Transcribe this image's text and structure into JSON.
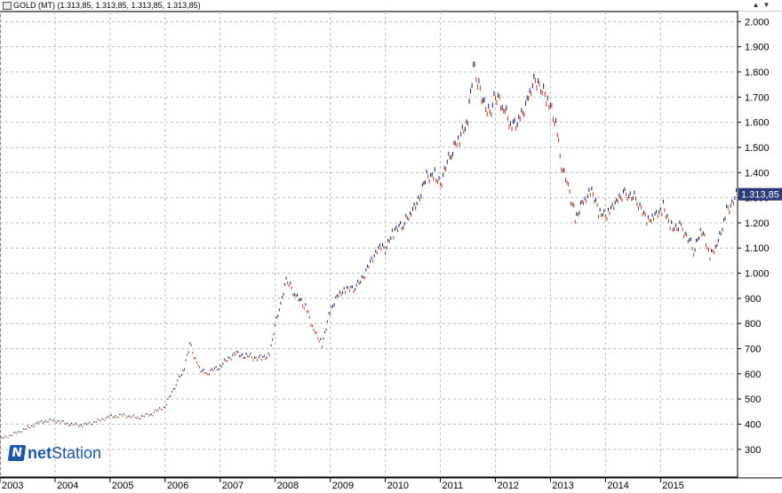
{
  "window": {
    "title": "GOLD (MT) (1.313,85, 1.313,85, 1.313,85, 1.313,85)",
    "controls": [
      "▲",
      "▼"
    ]
  },
  "brand": {
    "prefix": "net",
    "suffix": "Station"
  },
  "colors": {
    "up": "#1a1a6e",
    "down": "#b03a1a",
    "grid": "#bdbdbd",
    "price_tag_bg": "#2a3a7a"
  },
  "chart_data": {
    "type": "line",
    "title": "GOLD (MT)",
    "x_ticks": [
      "2003",
      "2004",
      "2005",
      "2006",
      "2007",
      "2008",
      "2009",
      "2010",
      "2011",
      "2012",
      "2013",
      "2014",
      "2015"
    ],
    "y_ticks": [
      300,
      400,
      500,
      600,
      700,
      800,
      900,
      1000,
      1100,
      1200,
      1300,
      1400,
      1500,
      1600,
      1700,
      1800,
      1900,
      2000
    ],
    "y_tick_labels": [
      "300",
      "400",
      "500",
      "600",
      "700",
      "800",
      "900",
      "1.000",
      "1.100",
      "1.200",
      "1.300",
      "1.400",
      "1.500",
      "1.600",
      "1.700",
      "1.800",
      "1.900",
      "2.000"
    ],
    "ylim": [
      190,
      2040
    ],
    "xlim": [
      2003.0,
      2016.4
    ],
    "grid": true,
    "last_price": 1313.85,
    "last_price_label": "1.313,85",
    "series": [
      {
        "x": [
          2003.0,
          2003.25,
          2003.5,
          2003.75,
          2004.0,
          2004.25,
          2004.5,
          2004.75,
          2005.0,
          2005.25,
          2005.5,
          2005.75,
          2006.0,
          2006.2,
          2006.35,
          2006.45,
          2006.6,
          2006.75,
          2007.0,
          2007.25,
          2007.5,
          2007.75,
          2007.9,
          2008.0,
          2008.1,
          2008.2,
          2008.4,
          2008.55,
          2008.7,
          2008.85,
          2009.0,
          2009.15,
          2009.3,
          2009.5,
          2009.75,
          2009.9,
          2010.0,
          2010.15,
          2010.35,
          2010.5,
          2010.75,
          2010.9,
          2011.0,
          2011.2,
          2011.35,
          2011.5,
          2011.6,
          2011.7,
          2011.8,
          2011.9,
          2012.0,
          2012.15,
          2012.3,
          2012.45,
          2012.6,
          2012.7,
          2012.8,
          2012.95,
          2013.1,
          2013.2,
          2013.3,
          2013.45,
          2013.6,
          2013.75,
          2013.9,
          2014.05,
          2014.2,
          2014.4,
          2014.6,
          2014.75,
          2014.9,
          2015.05,
          2015.2,
          2015.4,
          2015.6,
          2015.75,
          2015.9,
          2016.05,
          2016.2,
          2016.4
        ],
        "y": [
          340,
          360,
          385,
          410,
          415,
          400,
          395,
          410,
          430,
          435,
          425,
          440,
          470,
          560,
          620,
          720,
          630,
          600,
          630,
          680,
          670,
          660,
          680,
          800,
          880,
          970,
          900,
          870,
          780,
          720,
          850,
          910,
          930,
          950,
          1050,
          1120,
          1100,
          1160,
          1200,
          1240,
          1380,
          1400,
          1360,
          1480,
          1530,
          1600,
          1820,
          1750,
          1680,
          1640,
          1700,
          1650,
          1580,
          1620,
          1700,
          1780,
          1740,
          1680,
          1600,
          1420,
          1380,
          1220,
          1280,
          1320,
          1230,
          1240,
          1300,
          1320,
          1280,
          1200,
          1220,
          1260,
          1190,
          1180,
          1090,
          1170,
          1060,
          1120,
          1250,
          1313.85
        ]
      }
    ]
  }
}
